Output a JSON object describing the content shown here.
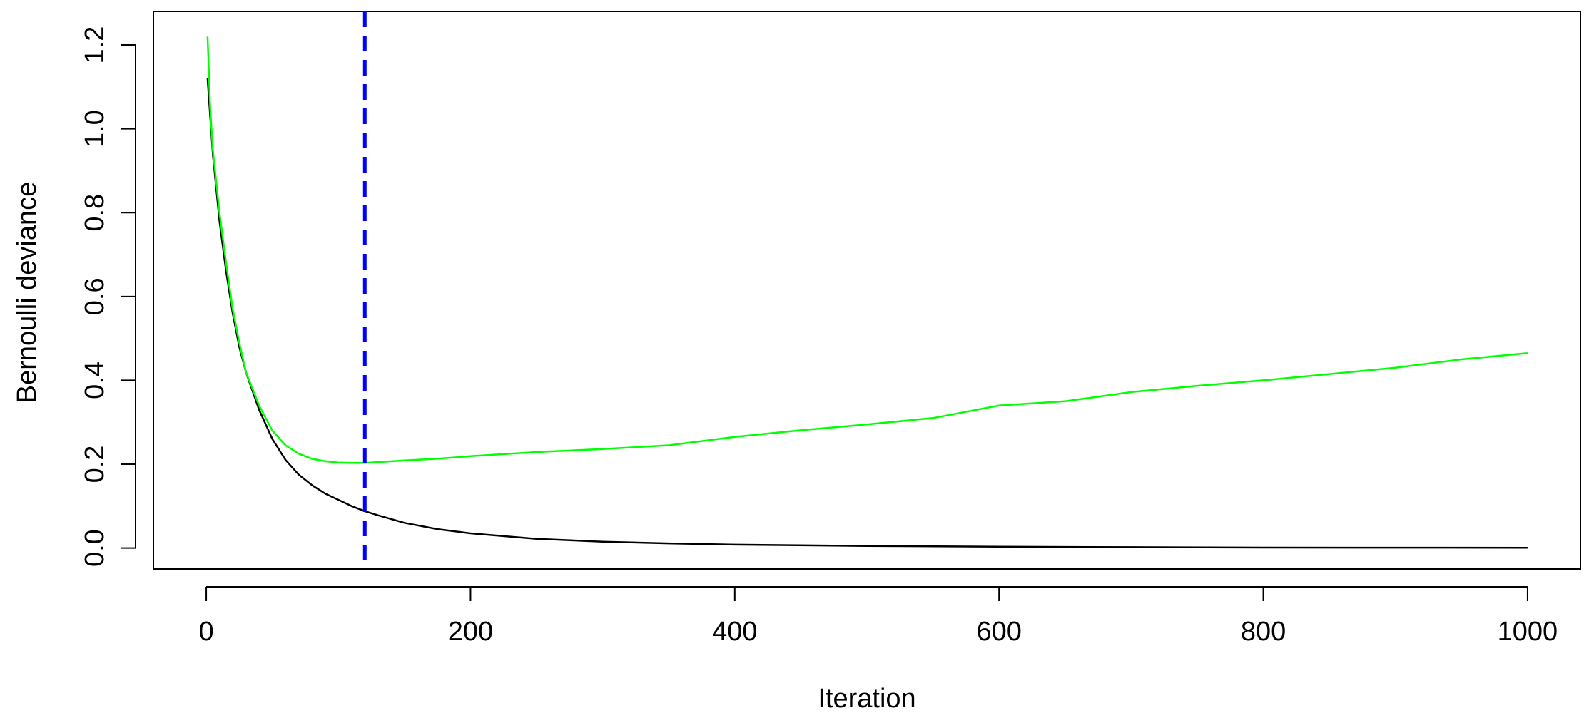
{
  "chart_data": {
    "type": "line",
    "xlabel": "Iteration",
    "ylabel": "Bernoulli deviance",
    "xlim": [
      -40,
      1040
    ],
    "ylim": [
      -0.05,
      1.28
    ],
    "xticks": [
      0,
      200,
      400,
      600,
      800,
      1000
    ],
    "xtick_labels": [
      "0",
      "200",
      "400",
      "600",
      "800",
      "1000"
    ],
    "yticks": [
      0.0,
      0.2,
      0.4,
      0.6,
      0.8,
      1.0,
      1.2
    ],
    "ytick_labels": [
      "0.0",
      "0.2",
      "0.4",
      "0.6",
      "0.8",
      "1.0",
      "1.2"
    ],
    "grid": false,
    "legend": "none",
    "series": [
      {
        "color": "#000000",
        "x": [
          1,
          5,
          10,
          15,
          20,
          25,
          30,
          40,
          50,
          60,
          70,
          80,
          90,
          100,
          110,
          120,
          130,
          150,
          175,
          200,
          250,
          300,
          350,
          400,
          500,
          600,
          700,
          800,
          900,
          1000
        ],
        "y": [
          1.12,
          0.94,
          0.78,
          0.66,
          0.56,
          0.48,
          0.42,
          0.33,
          0.26,
          0.21,
          0.175,
          0.15,
          0.13,
          0.115,
          0.1,
          0.088,
          0.078,
          0.06,
          0.045,
          0.035,
          0.022,
          0.015,
          0.011,
          0.008,
          0.005,
          0.003,
          0.002,
          0.001,
          0.0008,
          0.0005
        ]
      },
      {
        "color": "#00ff00",
        "x": [
          1,
          3,
          5,
          10,
          15,
          20,
          25,
          30,
          40,
          50,
          60,
          70,
          80,
          90,
          100,
          110,
          120,
          130,
          150,
          175,
          200,
          250,
          300,
          350,
          400,
          450,
          500,
          550,
          600,
          650,
          700,
          750,
          800,
          850,
          900,
          950,
          1000
        ],
        "y": [
          1.22,
          1.05,
          0.95,
          0.8,
          0.68,
          0.57,
          0.49,
          0.42,
          0.34,
          0.28,
          0.245,
          0.225,
          0.213,
          0.207,
          0.204,
          0.203,
          0.203,
          0.205,
          0.209,
          0.213,
          0.219,
          0.229,
          0.236,
          0.245,
          0.265,
          0.281,
          0.295,
          0.31,
          0.34,
          0.35,
          0.372,
          0.387,
          0.4,
          0.415,
          0.43,
          0.45,
          0.465
        ]
      }
    ],
    "vline": {
      "x": 120,
      "color": "#0000ff",
      "style": "dashed"
    }
  }
}
